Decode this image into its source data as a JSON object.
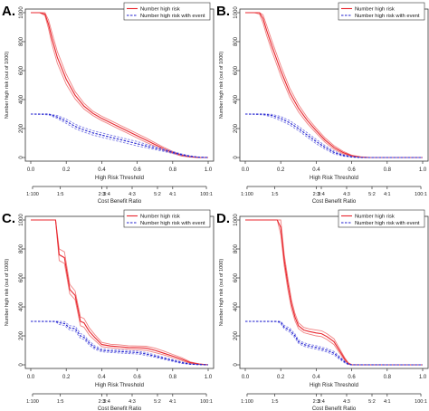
{
  "colors": {
    "number_high_risk": "#e8262e",
    "number_high_risk_band": "#f08080",
    "number_high_risk_with_event": "#1f1fcf",
    "number_high_risk_with_event_band": "#7f7fe6",
    "axis": "#333333"
  },
  "chart_data": [
    {
      "type": "line",
      "panel_label": "A.",
      "xlabel": "High Risk Threshold",
      "x2label": "Cost Benefit Ratio",
      "ylabel": "Number high risk (out of 1000)",
      "xlim": [
        0,
        1
      ],
      "ylim": [
        0,
        1000
      ],
      "x_ticks": [
        "0.0",
        "0.2",
        "0.4",
        "0.6",
        "0.8",
        "1.0"
      ],
      "y_ticks": [
        "0",
        "200",
        "400",
        "600",
        "800",
        "1000"
      ],
      "cost_benefit_ticks": [
        "1:100",
        "1:5",
        "2:3",
        "3:4",
        "4:3",
        "5:2",
        "4:1",
        "100:1"
      ],
      "cost_benefit_positions": [
        0.01,
        0.1667,
        0.4,
        0.4286,
        0.5714,
        0.7143,
        0.8,
        0.99
      ],
      "legend": [
        "Number high risk",
        "Number high risk with event"
      ],
      "legend_position": "top-right",
      "series": [
        {
          "name": "Number high risk",
          "x": [
            0.0,
            0.05,
            0.08,
            0.1,
            0.12,
            0.15,
            0.2,
            0.25,
            0.3,
            0.35,
            0.4,
            0.45,
            0.5,
            0.55,
            0.6,
            0.65,
            0.7,
            0.75,
            0.8,
            0.85,
            0.9,
            0.95,
            1.0
          ],
          "values": [
            1000,
            1000,
            990,
            920,
            820,
            690,
            540,
            430,
            355,
            305,
            270,
            240,
            210,
            180,
            150,
            120,
            90,
            60,
            35,
            15,
            5,
            0,
            0
          ],
          "lower": [
            1000,
            1000,
            980,
            890,
            780,
            650,
            505,
            405,
            335,
            290,
            255,
            225,
            195,
            165,
            135,
            105,
            78,
            50,
            28,
            10,
            3,
            0,
            0
          ],
          "upper": [
            1000,
            1000,
            1000,
            950,
            860,
            730,
            575,
            455,
            375,
            320,
            285,
            255,
            225,
            195,
            165,
            135,
            102,
            70,
            42,
            20,
            7,
            1,
            0
          ]
        },
        {
          "name": "Number high risk with event",
          "x": [
            0.0,
            0.1,
            0.15,
            0.2,
            0.25,
            0.3,
            0.35,
            0.4,
            0.45,
            0.5,
            0.55,
            0.6,
            0.65,
            0.7,
            0.75,
            0.8,
            0.85,
            0.9,
            0.95,
            1.0
          ],
          "values": [
            300,
            300,
            280,
            250,
            215,
            190,
            170,
            155,
            140,
            125,
            110,
            95,
            80,
            65,
            50,
            35,
            20,
            8,
            2,
            0
          ],
          "lower": [
            300,
            295,
            270,
            235,
            200,
            175,
            155,
            140,
            125,
            110,
            95,
            80,
            68,
            55,
            42,
            28,
            15,
            5,
            1,
            0
          ],
          "upper": [
            300,
            300,
            290,
            265,
            230,
            205,
            185,
            170,
            155,
            140,
            125,
            110,
            92,
            75,
            58,
            42,
            25,
            11,
            3,
            0
          ]
        }
      ]
    },
    {
      "type": "line",
      "panel_label": "B.",
      "xlabel": "High Risk Threshold",
      "x2label": "Cost Benefit Ratio",
      "ylabel": "Number high risk (out of 1000)",
      "xlim": [
        0,
        1
      ],
      "ylim": [
        0,
        1000
      ],
      "x_ticks": [
        "0.0",
        "0.2",
        "0.4",
        "0.6",
        "0.8",
        "1.0"
      ],
      "y_ticks": [
        "0",
        "200",
        "400",
        "600",
        "800",
        "1000"
      ],
      "cost_benefit_ticks": [
        "1:100",
        "1:5",
        "2:3",
        "3:4",
        "4:3",
        "5:2",
        "4:1",
        "100:1"
      ],
      "cost_benefit_positions": [
        0.01,
        0.1667,
        0.4,
        0.4286,
        0.5714,
        0.7143,
        0.8,
        0.99
      ],
      "legend": [
        "Number high risk",
        "Number high risk with event"
      ],
      "legend_position": "top-right",
      "series": [
        {
          "name": "Number high risk",
          "x": [
            0.0,
            0.05,
            0.08,
            0.1,
            0.12,
            0.15,
            0.2,
            0.25,
            0.3,
            0.35,
            0.4,
            0.45,
            0.5,
            0.55,
            0.6,
            0.65,
            0.7,
            0.75,
            0.8,
            0.85,
            0.9,
            1.0
          ],
          "values": [
            1000,
            1000,
            1000,
            960,
            880,
            770,
            600,
            450,
            340,
            255,
            185,
            120,
            70,
            35,
            12,
            3,
            0,
            0,
            0,
            0,
            0,
            0
          ],
          "lower": [
            1000,
            1000,
            990,
            930,
            845,
            735,
            565,
            420,
            315,
            235,
            168,
            105,
            58,
            26,
            8,
            1,
            0,
            0,
            0,
            0,
            0,
            0
          ],
          "upper": [
            1000,
            1000,
            1000,
            985,
            915,
            805,
            635,
            480,
            365,
            275,
            202,
            135,
            82,
            44,
            16,
            5,
            0,
            0,
            0,
            0,
            0,
            0
          ]
        },
        {
          "name": "Number high risk with event",
          "x": [
            0.0,
            0.1,
            0.15,
            0.2,
            0.25,
            0.3,
            0.35,
            0.4,
            0.45,
            0.5,
            0.55,
            0.6,
            0.65,
            0.7,
            1.0
          ],
          "values": [
            300,
            300,
            290,
            270,
            240,
            200,
            155,
            110,
            70,
            35,
            15,
            5,
            0,
            0,
            0
          ],
          "lower": [
            300,
            295,
            280,
            255,
            225,
            185,
            140,
            95,
            58,
            25,
            10,
            2,
            0,
            0,
            0
          ],
          "upper": [
            300,
            300,
            298,
            283,
            255,
            215,
            170,
            125,
            82,
            45,
            20,
            8,
            1,
            0,
            0
          ]
        }
      ]
    },
    {
      "type": "line",
      "panel_label": "C.",
      "xlabel": "High Risk Threshold",
      "x2label": "Cost Benefit Ratio",
      "ylabel": "Number high risk (out of 1000)",
      "xlim": [
        0,
        1
      ],
      "ylim": [
        0,
        1000
      ],
      "x_ticks": [
        "0.0",
        "0.2",
        "0.4",
        "0.6",
        "0.8",
        "1.0"
      ],
      "y_ticks": [
        "0",
        "200",
        "400",
        "600",
        "800",
        "1000"
      ],
      "cost_benefit_ticks": [
        "1:100",
        "1:5",
        "2:3",
        "3:4",
        "4:3",
        "5:2",
        "4:1",
        "100:1"
      ],
      "cost_benefit_positions": [
        0.01,
        0.1667,
        0.4,
        0.4286,
        0.5714,
        0.7143,
        0.8,
        0.99
      ],
      "legend": [
        "Number high risk",
        "Number high risk with event"
      ],
      "legend_position": "top-right",
      "series": [
        {
          "name": "Number high risk",
          "x": [
            0.0,
            0.14,
            0.16,
            0.19,
            0.22,
            0.25,
            0.28,
            0.3,
            0.33,
            0.36,
            0.4,
            0.45,
            0.5,
            0.55,
            0.6,
            0.65,
            0.7,
            0.75,
            0.8,
            0.85,
            0.9,
            0.95,
            1.0
          ],
          "values": [
            1000,
            1000,
            760,
            740,
            520,
            480,
            300,
            290,
            230,
            190,
            140,
            130,
            125,
            120,
            118,
            115,
            100,
            80,
            60,
            40,
            15,
            5,
            0
          ],
          "lower": [
            1000,
            1000,
            720,
            700,
            490,
            450,
            270,
            260,
            205,
            170,
            125,
            118,
            112,
            108,
            105,
            100,
            85,
            68,
            50,
            30,
            10,
            3,
            0
          ],
          "upper": [
            1000,
            1000,
            800,
            780,
            555,
            510,
            330,
            320,
            255,
            210,
            155,
            142,
            138,
            132,
            130,
            128,
            115,
            95,
            72,
            50,
            20,
            7,
            0
          ]
        },
        {
          "name": "Number high risk with event",
          "x": [
            0.0,
            0.14,
            0.16,
            0.19,
            0.22,
            0.25,
            0.28,
            0.3,
            0.33,
            0.36,
            0.4,
            0.45,
            0.5,
            0.55,
            0.6,
            0.65,
            0.7,
            0.75,
            0.8,
            0.85,
            0.9,
            0.95,
            1.0
          ],
          "values": [
            300,
            300,
            290,
            285,
            255,
            250,
            200,
            190,
            150,
            120,
            100,
            95,
            92,
            88,
            85,
            75,
            60,
            45,
            30,
            15,
            5,
            2,
            0
          ],
          "lower": [
            300,
            298,
            278,
            272,
            240,
            234,
            184,
            176,
            136,
            108,
            90,
            85,
            82,
            78,
            75,
            65,
            52,
            38,
            24,
            10,
            3,
            1,
            0
          ],
          "upper": [
            300,
            300,
            300,
            298,
            270,
            266,
            216,
            204,
            164,
            132,
            110,
            105,
            102,
            98,
            95,
            85,
            68,
            52,
            36,
            20,
            7,
            3,
            0
          ]
        }
      ]
    },
    {
      "type": "line",
      "panel_label": "D.",
      "xlabel": "High Risk Threshold",
      "x2label": "Cost Benefit Ratio",
      "ylabel": "Number high risk (out of 1000)",
      "xlim": [
        0,
        1
      ],
      "ylim": [
        0,
        1000
      ],
      "x_ticks": [
        "0.0",
        "0.2",
        "0.4",
        "0.6",
        "0.8",
        "1.0"
      ],
      "y_ticks": [
        "0",
        "200",
        "400",
        "600",
        "800",
        "1000"
      ],
      "cost_benefit_ticks": [
        "1:100",
        "1:5",
        "2:3",
        "3:4",
        "4:3",
        "5:2",
        "4:1",
        "100:1"
      ],
      "cost_benefit_positions": [
        0.01,
        0.1667,
        0.4,
        0.4286,
        0.5714,
        0.7143,
        0.8,
        0.99
      ],
      "legend": [
        "Number high risk",
        "Number high risk with event"
      ],
      "legend_position": "top-right",
      "series": [
        {
          "name": "Number high risk",
          "x": [
            0.0,
            0.18,
            0.2,
            0.22,
            0.24,
            0.26,
            0.28,
            0.3,
            0.33,
            0.36,
            0.4,
            0.43,
            0.46,
            0.5,
            0.53,
            0.56,
            0.58,
            0.6,
            0.65,
            1.0
          ],
          "values": [
            1000,
            1000,
            950,
            720,
            560,
            420,
            330,
            270,
            240,
            230,
            220,
            215,
            195,
            160,
            100,
            40,
            10,
            0,
            0,
            0
          ],
          "lower": [
            1000,
            1000,
            900,
            680,
            520,
            390,
            305,
            250,
            222,
            212,
            200,
            195,
            175,
            140,
            85,
            30,
            5,
            0,
            0,
            0
          ],
          "upper": [
            1000,
            1000,
            1000,
            760,
            600,
            450,
            355,
            290,
            258,
            248,
            240,
            235,
            215,
            180,
            115,
            50,
            15,
            2,
            0,
            0
          ]
        },
        {
          "name": "Number high risk with event",
          "x": [
            0.0,
            0.18,
            0.2,
            0.22,
            0.25,
            0.28,
            0.3,
            0.33,
            0.36,
            0.4,
            0.43,
            0.46,
            0.5,
            0.53,
            0.56,
            0.58,
            0.6,
            1.0
          ],
          "values": [
            300,
            300,
            295,
            260,
            240,
            200,
            160,
            140,
            130,
            120,
            110,
            100,
            80,
            50,
            20,
            5,
            0,
            0
          ],
          "lower": [
            300,
            298,
            285,
            248,
            226,
            186,
            148,
            128,
            118,
            108,
            98,
            88,
            68,
            40,
            14,
            2,
            0,
            0
          ],
          "upper": [
            300,
            300,
            300,
            272,
            254,
            214,
            172,
            152,
            142,
            132,
            122,
            112,
            92,
            60,
            26,
            8,
            1,
            0
          ]
        }
      ]
    }
  ]
}
